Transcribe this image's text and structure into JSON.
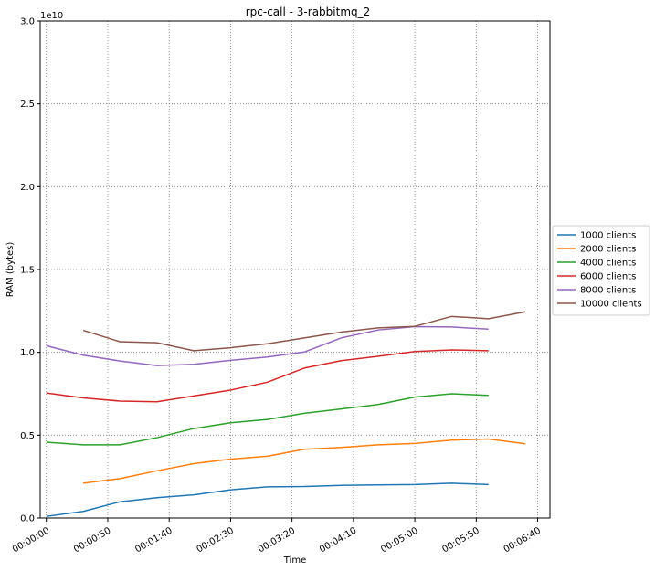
{
  "chart_data": {
    "type": "line",
    "title": "rpc-call - 3-rabbitmq_2",
    "xlabel": "Time",
    "ylabel": "RAM (bytes)",
    "y_multiplier_label": "1e10",
    "xlim": [
      -5,
      410
    ],
    "ylim": [
      0,
      30000000000
    ],
    "x_ticks": [
      {
        "value": 0,
        "label": "00:00:00"
      },
      {
        "value": 50,
        "label": "00:00:50"
      },
      {
        "value": 100,
        "label": "00:01:40"
      },
      {
        "value": 150,
        "label": "00:02:30"
      },
      {
        "value": 200,
        "label": "00:03:20"
      },
      {
        "value": 250,
        "label": "00:04:10"
      },
      {
        "value": 300,
        "label": "00:05:00"
      },
      {
        "value": 350,
        "label": "00:05:50"
      },
      {
        "value": 400,
        "label": "00:06:40"
      }
    ],
    "y_ticks": [
      {
        "value": 0,
        "label": "0.0"
      },
      {
        "value": 5000000000,
        "label": "0.5"
      },
      {
        "value": 10000000000,
        "label": "1.0"
      },
      {
        "value": 15000000000,
        "label": "1.5"
      },
      {
        "value": 20000000000,
        "label": "2.0"
      },
      {
        "value": 25000000000,
        "label": "2.5"
      },
      {
        "value": 30000000000,
        "label": "3.0"
      }
    ],
    "grid": true,
    "legend_position": "right",
    "series": [
      {
        "name": "1000 clients",
        "color": "#1f77b4",
        "points": [
          [
            0,
            100000000
          ],
          [
            30,
            400000000
          ],
          [
            60,
            980000000
          ],
          [
            90,
            1230000000
          ],
          [
            120,
            1400000000
          ],
          [
            150,
            1700000000
          ],
          [
            180,
            1880000000
          ],
          [
            210,
            1900000000
          ],
          [
            240,
            1970000000
          ],
          [
            270,
            2000000000
          ],
          [
            300,
            2020000000
          ],
          [
            330,
            2100000000
          ],
          [
            360,
            2020000000
          ]
        ]
      },
      {
        "name": "2000 clients",
        "color": "#ff7f0e",
        "points": [
          [
            30,
            2100000000
          ],
          [
            60,
            2380000000
          ],
          [
            90,
            2850000000
          ],
          [
            120,
            3280000000
          ],
          [
            150,
            3560000000
          ],
          [
            180,
            3730000000
          ],
          [
            210,
            4150000000
          ],
          [
            240,
            4260000000
          ],
          [
            270,
            4420000000
          ],
          [
            300,
            4500000000
          ],
          [
            330,
            4700000000
          ],
          [
            360,
            4770000000
          ],
          [
            390,
            4480000000
          ]
        ]
      },
      {
        "name": "4000 clients",
        "color": "#2ca02c",
        "points": [
          [
            0,
            4580000000
          ],
          [
            30,
            4420000000
          ],
          [
            60,
            4420000000
          ],
          [
            90,
            4850000000
          ],
          [
            120,
            5400000000
          ],
          [
            150,
            5750000000
          ],
          [
            180,
            5950000000
          ],
          [
            210,
            6320000000
          ],
          [
            240,
            6580000000
          ],
          [
            270,
            6850000000
          ],
          [
            300,
            7300000000
          ],
          [
            330,
            7500000000
          ],
          [
            360,
            7400000000
          ]
        ]
      },
      {
        "name": "6000 clients",
        "color": "#d62728",
        "points": [
          [
            0,
            7550000000
          ],
          [
            30,
            7250000000
          ],
          [
            60,
            7060000000
          ],
          [
            90,
            7020000000
          ],
          [
            120,
            7370000000
          ],
          [
            150,
            7720000000
          ],
          [
            180,
            8200000000
          ],
          [
            210,
            9050000000
          ],
          [
            240,
            9500000000
          ],
          [
            270,
            9760000000
          ],
          [
            300,
            10050000000
          ],
          [
            330,
            10150000000
          ],
          [
            360,
            10100000000
          ]
        ]
      },
      {
        "name": "8000 clients",
        "color": "#9467bd",
        "points": [
          [
            0,
            10400000000
          ],
          [
            30,
            9830000000
          ],
          [
            60,
            9480000000
          ],
          [
            90,
            9200000000
          ],
          [
            120,
            9280000000
          ],
          [
            150,
            9520000000
          ],
          [
            180,
            9720000000
          ],
          [
            210,
            10020000000
          ],
          [
            240,
            10870000000
          ],
          [
            270,
            11350000000
          ],
          [
            300,
            11550000000
          ],
          [
            330,
            11530000000
          ],
          [
            360,
            11400000000
          ]
        ]
      },
      {
        "name": "10000 clients",
        "color": "#8c564b",
        "points": [
          [
            30,
            11330000000
          ],
          [
            60,
            10640000000
          ],
          [
            90,
            10580000000
          ],
          [
            120,
            10100000000
          ],
          [
            150,
            10280000000
          ],
          [
            180,
            10520000000
          ],
          [
            210,
            10870000000
          ],
          [
            240,
            11220000000
          ],
          [
            270,
            11480000000
          ],
          [
            300,
            11570000000
          ],
          [
            330,
            12170000000
          ],
          [
            360,
            12030000000
          ],
          [
            390,
            12450000000
          ]
        ]
      }
    ]
  }
}
